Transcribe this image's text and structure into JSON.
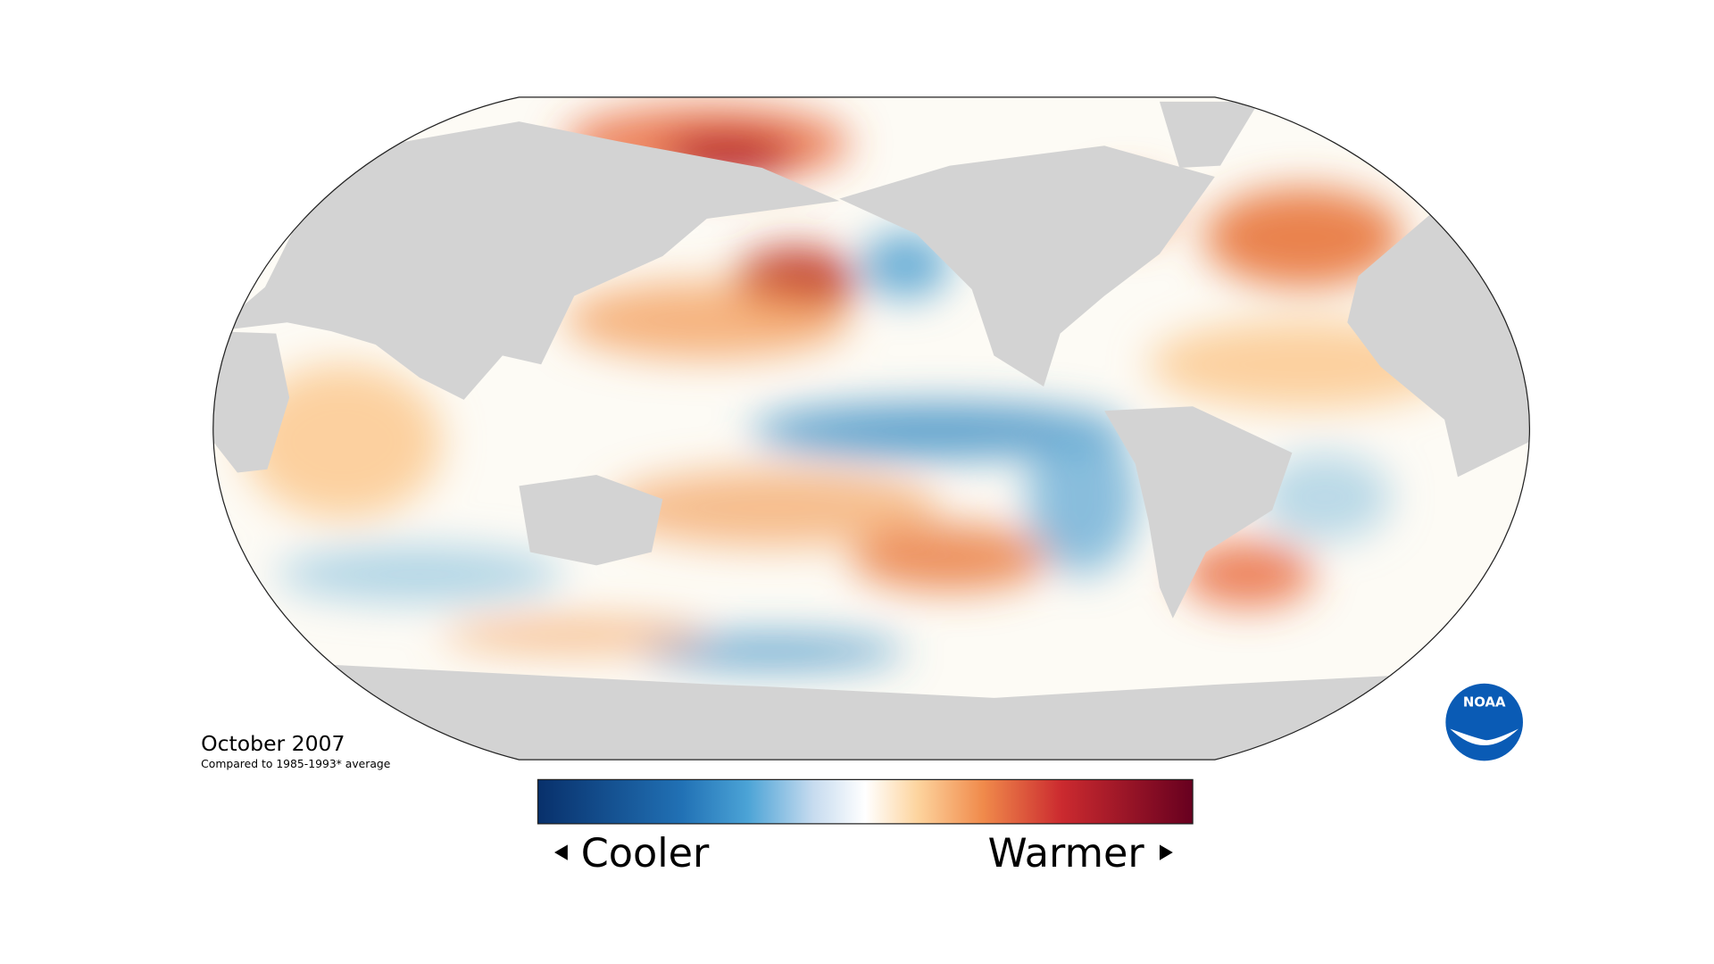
{
  "map": {
    "date": "October 2007",
    "caption": "Compared to 1985-1993* average"
  },
  "legend": {
    "low": "Cooler",
    "high": "Warmer"
  },
  "logo": "NOAA"
}
